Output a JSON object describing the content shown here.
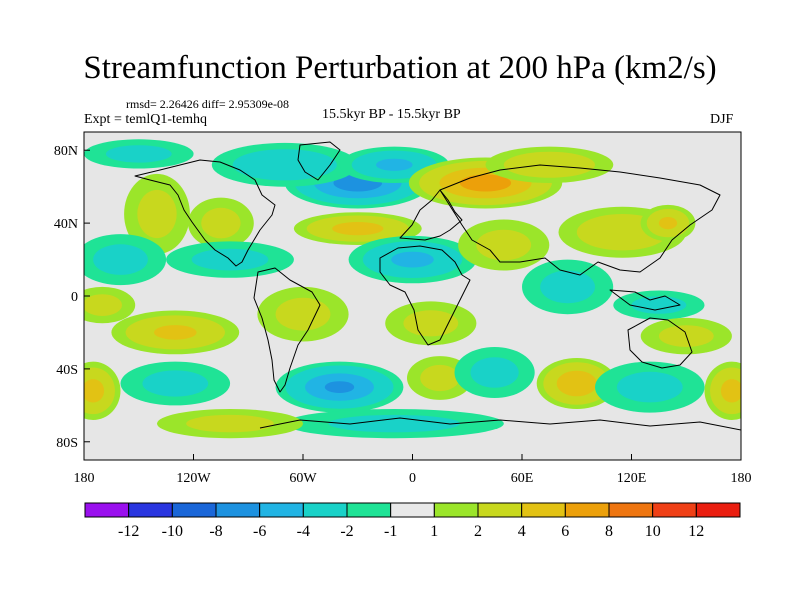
{
  "chart_data": {
    "type": "heatmap",
    "title": "Streamfunction Perturbation at 200 hPa (km2/s)",
    "left_label": "rmsd= 2.26426 diff= 2.95309e-08",
    "left_label2": "Expt = temlQ1-temhq",
    "center_label": "15.5kyr BP - 15.5kyr BP",
    "right_label": "DJF",
    "x_ticks": [
      "180",
      "120W",
      "60W",
      "0",
      "60E",
      "120E",
      "180"
    ],
    "x_values": [
      -180,
      -120,
      -60,
      0,
      60,
      120,
      180
    ],
    "y_ticks": [
      "80N",
      "40N",
      "0",
      "40S",
      "80S"
    ],
    "y_values": [
      80,
      40,
      0,
      -40,
      -80
    ],
    "xlim": [
      -180,
      180
    ],
    "ylim": [
      -90,
      90
    ],
    "colorbar_labels": [
      "-12",
      "-10",
      "-8",
      "-6",
      "-4",
      "-2",
      "-1",
      "1",
      "2",
      "4",
      "6",
      "8",
      "10",
      "12"
    ],
    "colorbar_colors": [
      "#9a10ee",
      "#2a36e0",
      "#1a66d8",
      "#1d92e0",
      "#21b4e4",
      "#19d2c8",
      "#1fe396",
      "#e8e8e8",
      "#9be52a",
      "#c8d81e",
      "#e2c214",
      "#eca00a",
      "#ee7510",
      "#ef4016",
      "#ea1e10"
    ],
    "blobs": [
      {
        "lon": -30,
        "lat": 62,
        "value": -7,
        "rlon": 40,
        "rlat": 14
      },
      {
        "lon": -70,
        "lat": 72,
        "value": -3,
        "rlon": 40,
        "rlat": 12
      },
      {
        "lon": -10,
        "lat": 72,
        "value": -4,
        "rlon": 30,
        "rlat": 10
      },
      {
        "lon": 40,
        "lat": 62,
        "value": 7,
        "rlon": 42,
        "rlat": 14
      },
      {
        "lon": 75,
        "lat": 72,
        "value": 3,
        "rlon": 35,
        "rlat": 10
      },
      {
        "lon": -30,
        "lat": 37,
        "value": 4.5,
        "rlon": 35,
        "rlat": 9
      },
      {
        "lon": -140,
        "lat": 45,
        "value": 2,
        "rlon": 18,
        "rlat": 22
      },
      {
        "lon": -105,
        "lat": 40,
        "value": 2,
        "rlon": 18,
        "rlat": 14
      },
      {
        "lon": -150,
        "lat": 78,
        "value": -2,
        "rlon": 30,
        "rlat": 8
      },
      {
        "lon": -160,
        "lat": 20,
        "value": -2,
        "rlon": 25,
        "rlat": 14
      },
      {
        "lon": -100,
        "lat": 20,
        "value": -2,
        "rlon": 35,
        "rlat": 10
      },
      {
        "lon": 0,
        "lat": 20,
        "value": -4,
        "rlon": 35,
        "rlat": 13
      },
      {
        "lon": 50,
        "lat": 28,
        "value": 2,
        "rlon": 25,
        "rlat": 14
      },
      {
        "lon": 115,
        "lat": 35,
        "value": 3,
        "rlon": 35,
        "rlat": 14
      },
      {
        "lon": 140,
        "lat": 40,
        "value": 4,
        "rlon": 15,
        "rlat": 10
      },
      {
        "lon": 85,
        "lat": 5,
        "value": -2,
        "rlon": 25,
        "rlat": 15
      },
      {
        "lon": 135,
        "lat": -5,
        "value": -2,
        "rlon": 25,
        "rlat": 8
      },
      {
        "lon": -130,
        "lat": -20,
        "value": 4,
        "rlon": 35,
        "rlat": 12
      },
      {
        "lon": -170,
        "lat": -5,
        "value": 2,
        "rlon": 18,
        "rlat": 10
      },
      {
        "lon": -60,
        "lat": -10,
        "value": 2,
        "rlon": 25,
        "rlat": 15
      },
      {
        "lon": 10,
        "lat": -15,
        "value": 2,
        "rlon": 25,
        "rlat": 12
      },
      {
        "lon": 150,
        "lat": -22,
        "value": 2,
        "rlon": 25,
        "rlat": 10
      },
      {
        "lon": -130,
        "lat": -48,
        "value": -2,
        "rlon": 30,
        "rlat": 12
      },
      {
        "lon": -40,
        "lat": -50,
        "value": -6,
        "rlon": 35,
        "rlat": 14
      },
      {
        "lon": 15,
        "lat": -45,
        "value": 2,
        "rlon": 18,
        "rlat": 12
      },
      {
        "lon": 45,
        "lat": -42,
        "value": -2,
        "rlon": 22,
        "rlat": 14
      },
      {
        "lon": 90,
        "lat": -48,
        "value": 5.5,
        "rlon": 22,
        "rlat": 14
      },
      {
        "lon": 130,
        "lat": -50,
        "value": -2,
        "rlon": 30,
        "rlat": 14
      },
      {
        "lon": -175,
        "lat": -52,
        "value": 4.5,
        "rlon": 15,
        "rlat": 16
      },
      {
        "lon": 175,
        "lat": -52,
        "value": 4.5,
        "rlon": 15,
        "rlat": 16
      },
      {
        "lon": -10,
        "lat": -70,
        "value": -2,
        "rlon": 60,
        "rlat": 8
      },
      {
        "lon": -100,
        "lat": -70,
        "value": 2,
        "rlon": 40,
        "rlat": 8
      }
    ]
  }
}
